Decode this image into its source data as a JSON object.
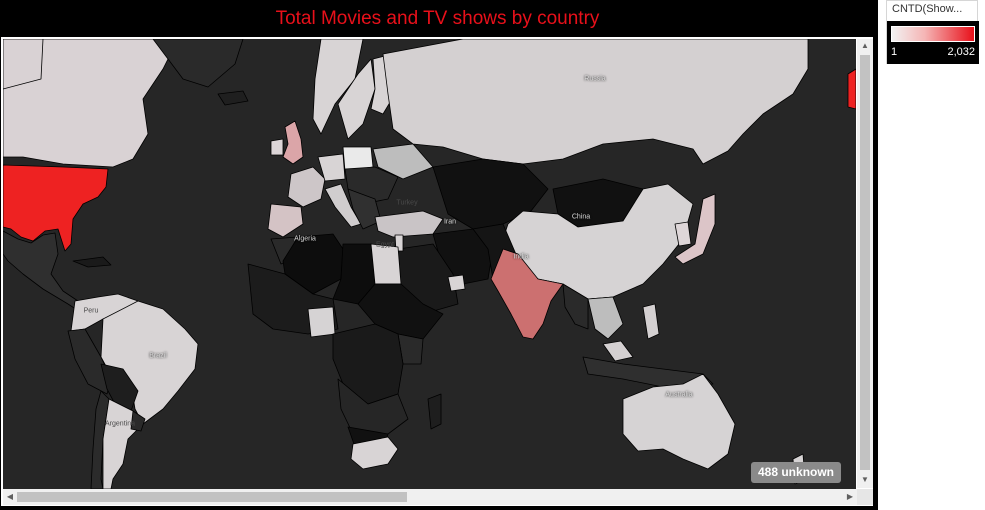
{
  "title": "Total Movies and TV shows by country",
  "legend": {
    "title": "CNTD(Show...",
    "min_label": "1",
    "max_label": "2,032",
    "color_low": "#f2f2f2",
    "color_high": "#e8101a"
  },
  "unknown_badge": "488 unknown",
  "map": {
    "background": "#262626",
    "country_labels": {
      "russia": "Russia",
      "china": "China",
      "india": "India",
      "iran": "Iran",
      "algeria": "Algeria",
      "brazil": "Brazil",
      "australia": "Australia",
      "turkey": "Turkey",
      "egypt": "Egypt",
      "peru": "Peru",
      "argentina": "Argentina"
    },
    "highlighted_countries": [
      {
        "name": "United States",
        "level": "high",
        "color": "#ee2222"
      },
      {
        "name": "India",
        "level": "medium",
        "color": "#cc7070"
      },
      {
        "name": "United Kingdom",
        "level": "medium-low",
        "color": "#dba5a8"
      },
      {
        "name": "Japan",
        "level": "medium-low",
        "color": "#dcc5c8"
      }
    ]
  },
  "scrollbar": {
    "up_glyph": "▲",
    "down_glyph": "▼",
    "left_glyph": "◀",
    "right_glyph": "▶"
  }
}
